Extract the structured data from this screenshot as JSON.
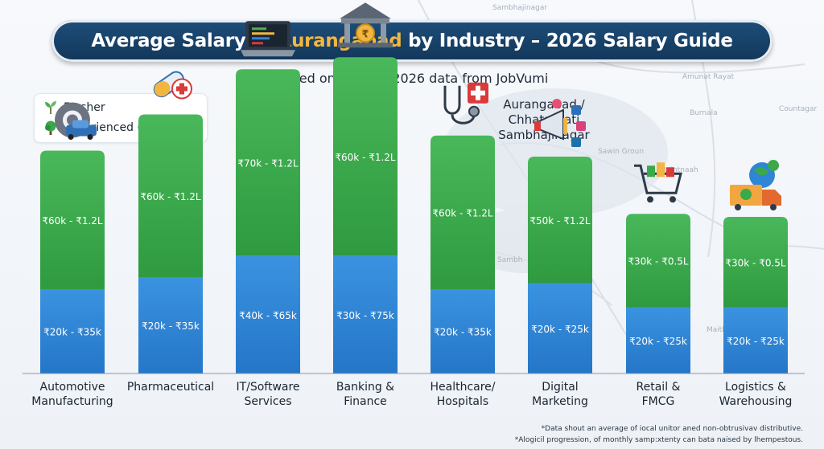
{
  "title": {
    "before": "Average Salary in ",
    "highlight": "Aurangabad",
    "after": " by Industry – 2026 Salary Guide"
  },
  "subtitle": "Based on verified 2026 data from JobVumi",
  "legend": {
    "fresher": "Fresher",
    "experienced": "Experienced (5+ years)"
  },
  "city_label": {
    "line1": "Aurangabad /",
    "line2": "Chhatrapati",
    "line3": "Sambhajinagar"
  },
  "footnotes": {
    "line1": "*Data shout an average of iocal unitor aned non-obtrusivav distributive.",
    "line2": "*Alogicil progression, of monthly samp:xtenty can bata naised by lhempestous."
  },
  "map_labels": [
    "Sambhajinagar",
    "Amunat Rayat",
    "Burnala",
    "Countagar",
    "Sawin Groun",
    "Raintnaah",
    "Sambh",
    "Maithtes"
  ],
  "colors": {
    "fresher": "#2f86d6",
    "experienced": "#3aa94a",
    "banner": "#173f66",
    "highlight": "#f2b640"
  },
  "chart_data": {
    "type": "bar",
    "stacked": true,
    "categories": [
      {
        "line1": "Automotive",
        "line2": "Manufacturing",
        "icon": "gear-car-icon"
      },
      {
        "line1": "Pharmaceutical",
        "line2": "",
        "icon": "pill-capsule-icon"
      },
      {
        "line1": "IT/Software",
        "line2": "Services",
        "icon": "laptop-code-icon"
      },
      {
        "line1": "Banking &",
        "line2": "Finance",
        "icon": "bank-rupee-icon"
      },
      {
        "line1": "Healthcare/",
        "line2": "Hospitals",
        "icon": "stethoscope-icon"
      },
      {
        "line1": "Digital",
        "line2": "Marketing",
        "icon": "megaphone-icon"
      },
      {
        "line1": "Retail &",
        "line2": "FMCG",
        "icon": "shopping-cart-icon"
      },
      {
        "line1": "Logistics &",
        "line2": "Warehousing",
        "icon": "delivery-truck-icon"
      }
    ],
    "series": [
      {
        "name": "Fresher",
        "labels": [
          "₹20k - ₹35k",
          "₹20k - ₹35k",
          "₹40k - ₹65k",
          "₹30k - ₹75k",
          "₹20k - ₹35k",
          "₹20k - ₹25k",
          "₹20k - ₹25k",
          "₹20k - ₹25k"
        ],
        "values": [
          28,
          32,
          39,
          39,
          28,
          30,
          22,
          22
        ]
      },
      {
        "name": "Experienced (5+ years)",
        "labels": [
          "₹60k - ₹1.2L",
          "₹60k - ₹1.2L",
          "₹70k - ₹1.2L",
          "₹60k - ₹1.2L",
          "₹60k - ₹1.2L",
          "₹50k - ₹1.2L",
          "₹30k - ₹0.5L",
          "₹30k - ₹0.5L"
        ],
        "values": [
          46,
          54,
          62,
          66,
          51,
          42,
          31,
          30
        ]
      }
    ]
  }
}
